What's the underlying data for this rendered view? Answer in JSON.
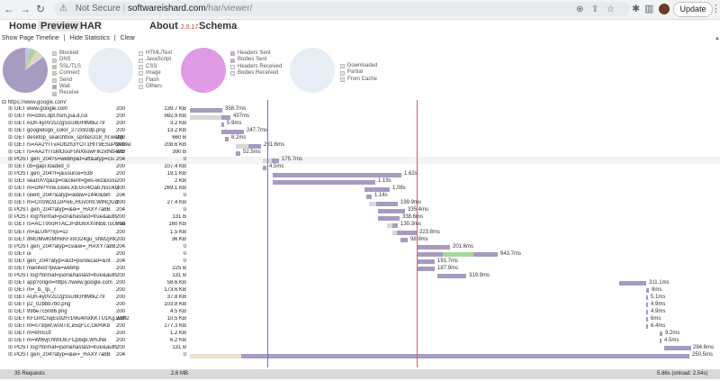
{
  "browser": {
    "url_warning": "Not Secure",
    "url_host": "softwareishard.com",
    "url_path": "/har/viewer/",
    "update_label": "Update"
  },
  "app": {
    "tabs": [
      {
        "label": "Home"
      },
      {
        "label": "Preview"
      },
      {
        "label": "HAR"
      },
      {
        "label": "About"
      },
      {
        "label": "Schema"
      }
    ],
    "version": "2.0.17",
    "toolbar": {
      "show_timeline": "Show Page Timeline",
      "sep1": "|",
      "hide_statistics": "Hide Statistics",
      "sep2": "|",
      "clear": "Clear"
    }
  },
  "legends": {
    "timing": [
      {
        "label": "Blocked",
        "color": "#d8d8d8"
      },
      {
        "label": "DNS",
        "color": "#b7d5ea"
      },
      {
        "label": "SSL/TLS",
        "color": "#a7d79c"
      },
      {
        "label": "Connect",
        "color": "#c0e1a8"
      },
      {
        "label": "Send",
        "color": "#e6d2ae"
      },
      {
        "label": "Wait",
        "color": "#a79bc2"
      },
      {
        "label": "Receive",
        "color": "#c9c1de"
      }
    ],
    "content": [
      {
        "label": "HTML/Text",
        "color": "#e8eef6"
      },
      {
        "label": "JavaScript",
        "color": "#e8eef6"
      },
      {
        "label": "CSS",
        "color": "#e8eef6"
      },
      {
        "label": "Image",
        "color": "#e8eef6"
      },
      {
        "label": "Flash",
        "color": "#e8eef6"
      },
      {
        "label": "Others",
        "color": "#e8eef6"
      }
    ],
    "traffic": [
      {
        "label": "Headers Sent",
        "color": "#e09be6"
      },
      {
        "label": "Bodies Sent",
        "color": "#e09be6"
      },
      {
        "label": "Headers Received",
        "color": "#e8eef6"
      },
      {
        "label": "Bodies Received",
        "color": "#e8eef6"
      }
    ],
    "cache": [
      {
        "label": "Downloaded",
        "color": "#e8e8e8"
      },
      {
        "label": "Partial",
        "color": "#e8e8e8"
      },
      {
        "label": "From Cache",
        "color": "#e8e8e8"
      }
    ]
  },
  "page": {
    "label": "https://www.google.com/",
    "expander": "⊟"
  },
  "requests": [
    {
      "url": "GET www.google.com",
      "status": "200",
      "size": "139.7 KB",
      "time": "358.7ms"
    },
    {
      "url": "GET m=cdos,dpf,hsm,jsa,d,csi",
      "status": "200",
      "size": "982.9 KB",
      "time": "437ms"
    },
    {
      "url": "GET AOh-ky0V2D2gSsU8GHlMtkZ79",
      "status": "200",
      "size": "3.2 KB",
      "time": "5.9ms"
    },
    {
      "url": "GET googlelogo_color_272x92dp.png",
      "status": "200",
      "size": "13.2 KB",
      "time": "247.7ms"
    },
    {
      "url": "GET desktop_searchbox_sprites318_hr.webp",
      "status": "200",
      "size": "660 B",
      "time": "8.2ms"
    },
    {
      "url": "GET rs=AA2YrTvADb2h3YOT1HIT9ESuPbAtBw",
      "status": "200",
      "size": "208.6 KB",
      "time": "291.6ms"
    },
    {
      "url": "GET rs=AA2YrTsMOouFsNXkowFIk2xtNb4vG",
      "status": "200",
      "size": "390 B",
      "time": "52.5ms"
    },
    {
      "url": "POST gen_204?s=webhp&t=aft&atyp=csi",
      "status": "204",
      "size": "0",
      "time": "175.7ms"
    },
    {
      "url": "GET cb=gapi.loaded_0",
      "status": "200",
      "size": "107.4 KB",
      "time": "4.5ms"
    },
    {
      "url": "POST gen_204?r=j&source=538",
      "status": "200",
      "size": "19.1 KB",
      "time": "1.62s"
    },
    {
      "url": "GET search?q&cp=0&client=gws-wiz&xssi",
      "status": "200",
      "size": "2 KB",
      "time": "1.19s"
    },
    {
      "url": "GET m=DhPYme,Ekev.Xb,GU4Gab,NsUkG",
      "status": "200",
      "size": "269.1 KB",
      "time": "1.08s"
    },
    {
      "url": "GET client_204?&atyp=i&biw=1440&bih",
      "status": "204",
      "size": "0",
      "time": "1.14s"
    },
    {
      "url": "GET m=CnSW2d,DPreE,HGv0mf,WlNQGd",
      "status": "200",
      "size": "27.4 KB",
      "time": "199.9ms"
    },
    {
      "url": "POST gen_204?atyp=i&ei=_HAXY7a8B",
      "status": "204",
      "size": "0",
      "time": "335.4ms"
    },
    {
      "url": "POST log?format=json&hasfast=true&auth",
      "status": "200",
      "size": "131 B",
      "time": "338.6ms"
    },
    {
      "url": "GET rs=ACT90oHTACJFdlG6XXnNbETsUFaa",
      "status": "200",
      "size": "160 KB",
      "time": "130.3ms"
    },
    {
      "url": "GET m=aLUfP?xjs=s2",
      "status": "200",
      "size": "1.5 KB",
      "time": "223.8ms"
    },
    {
      "url": "GET dMUMwKIMRkKFxm324gu_shM2jRk",
      "status": "200",
      "size": "36 KB",
      "time": "98.9ms"
    },
    {
      "url": "POST gen_204?atyp=csi&ei=_HAXY7a8B",
      "status": "204",
      "size": "0",
      "time": "201.6ms"
    },
    {
      "url": "GET ui",
      "status": "200",
      "size": "0",
      "time": "943.7ms"
    },
    {
      "url": "GET gen_204?atyp=i&ct=psnt&cad=&nt",
      "status": "204",
      "size": "0",
      "time": "191.7ms"
    },
    {
      "url": "GET manifest?pwa=webhp",
      "status": "200",
      "size": "225 B",
      "time": "187.9ms"
    },
    {
      "url": "POST log?format=json&hasfast=true&auth",
      "status": "200",
      "size": "131 B",
      "time": "319.9ms"
    },
    {
      "url": "GET app?origin=https://www.google.com",
      "status": "200",
      "size": "58.6 KB",
      "time": "311.1ms"
    },
    {
      "url": "GET m=_b,_tp,_r",
      "status": "200",
      "size": "173.6 KB",
      "time": "8ms"
    },
    {
      "url": "GET AOh-ky0V2D2gSsU8GHlMtkZ79",
      "status": "200",
      "size": "37.8 KB",
      "time": "5.1ms"
    },
    {
      "url": "GET p2_02bbb7b0.png",
      "status": "200",
      "size": "103.8 KB",
      "time": "4.9ms"
    },
    {
      "url": "GET 99be7c5086.png",
      "status": "200",
      "size": "4.5 KB",
      "time": "4.9ms"
    },
    {
      "url": "GET KFOmCnqEu92Fr1Mu4mxKKTU1Kg.woff2",
      "status": "200",
      "size": "10.5 KB",
      "time": "6ms"
    },
    {
      "url": "GET m=n73qwf,ws9Tlc,e5qFLc,GkRiKb",
      "status": "200",
      "size": "277.3 KB",
      "time": "6.4ms"
    },
    {
      "url": "GET m=bm51tf",
      "status": "200",
      "size": "1.2 KB",
      "time": "9.2ms"
    },
    {
      "url": "GET m=Wt6vjf,hhhU8,FCpbqb,WhJNk",
      "status": "200",
      "size": "6.2 KB",
      "time": "4.5ms"
    },
    {
      "url": "POST log?format=json&hasfast=true&auth",
      "status": "200",
      "size": "131 B",
      "time": "284.6ms"
    },
    {
      "url": "POST gen_204?atyp=i&ei=_HAXY7a8B",
      "status": "204",
      "size": "0",
      "time": "250.5ms"
    }
  ],
  "footer": {
    "requests": "35 Requests",
    "size": "2.6 MB",
    "timing": "5.86s (onload: 2.54s)"
  },
  "colors": {
    "wait": "#a79bc2",
    "blocked": "#d8d8d8",
    "send": "#e6d2ae",
    "ssl": "#a7d79c",
    "onload_line": "#e05a5a",
    "domload_line": "#6c6cd8"
  }
}
